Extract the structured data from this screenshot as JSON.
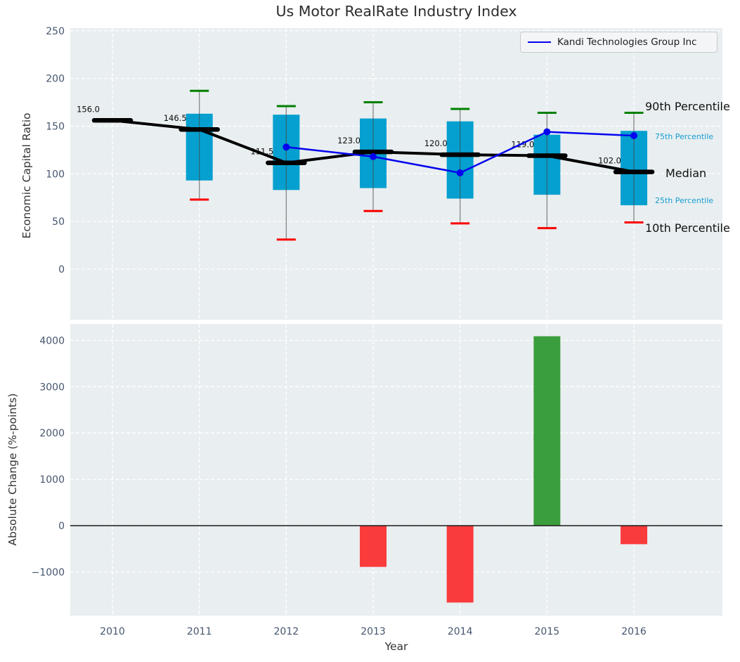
{
  "title": "Us Motor RealRate Industry Index",
  "labels": {
    "top_ylabel": "Economic Capital Ratio",
    "bottom_ylabel": "Absolute Change (%-points)",
    "xlabel": "Year"
  },
  "legend": {
    "label": "Kandi Technologies Group Inc"
  },
  "percentile_labels": {
    "p90": "90th Percentile",
    "p75": "75th Percentile",
    "median": "Median",
    "p25": "25th Percentile",
    "p10": "10th Percentile"
  },
  "axes": {
    "top_yticks": [
      {
        "value": 250,
        "label": "250"
      },
      {
        "value": 200,
        "label": "200"
      },
      {
        "value": 150,
        "label": "150"
      },
      {
        "value": 100,
        "label": "100"
      },
      {
        "value": 50,
        "label": "50"
      },
      {
        "value": 0,
        "label": "0"
      }
    ],
    "bottom_yticks": [
      {
        "value": 4000,
        "label": "4000"
      },
      {
        "value": 3000,
        "label": "3000"
      },
      {
        "value": 2000,
        "label": "2000"
      },
      {
        "value": 1000,
        "label": "1000"
      },
      {
        "value": 0,
        "label": "0"
      },
      {
        "value": -1000,
        "label": "−1000"
      }
    ],
    "xticks": [
      {
        "value": 2010,
        "label": "2010"
      },
      {
        "value": 2011,
        "label": "2011"
      },
      {
        "value": 2012,
        "label": "2012"
      },
      {
        "value": 2013,
        "label": "2013"
      },
      {
        "value": 2014,
        "label": "2014"
      },
      {
        "value": 2015,
        "label": "2015"
      },
      {
        "value": 2016,
        "label": "2016"
      }
    ]
  },
  "chart_data": [
    {
      "type": "box",
      "title": "Us Motor RealRate Industry Index",
      "xlabel": "Year",
      "ylabel": "Economic Capital Ratio",
      "ylim": [
        -57,
        250
      ],
      "yticks": [
        0,
        50,
        100,
        150,
        200,
        250
      ],
      "grid": true,
      "legend_position": "upper right",
      "categories": [
        2010,
        2011,
        2012,
        2013,
        2014,
        2015,
        2016
      ],
      "boxes": [
        {
          "year": 2010,
          "p10": null,
          "p25": null,
          "median": 156.0,
          "p75": null,
          "p90": null,
          "median_label": "156.0"
        },
        {
          "year": 2011,
          "p10": 73,
          "p25": 93,
          "median": 146.5,
          "p75": 163,
          "p90": 187,
          "median_label": "146.5"
        },
        {
          "year": 2012,
          "p10": 31,
          "p25": 83,
          "median": 111.5,
          "p75": 162,
          "p90": 171,
          "median_label": "111.5"
        },
        {
          "year": 2013,
          "p10": 61,
          "p25": 85,
          "median": 123.0,
          "p75": 158,
          "p90": 175,
          "median_label": "123.0"
        },
        {
          "year": 2014,
          "p10": 48,
          "p25": 74,
          "median": 120.0,
          "p75": 155,
          "p90": 168,
          "median_label": "120.0"
        },
        {
          "year": 2015,
          "p10": 43,
          "p25": 78,
          "median": 119.0,
          "p75": 141,
          "p90": 164,
          "median_label": "119.0"
        },
        {
          "year": 2016,
          "p10": 49,
          "p25": 67,
          "median": 102.0,
          "p75": 145,
          "p90": 164,
          "median_label": "102.0"
        }
      ],
      "series": [
        {
          "name": "Kandi Technologies Group Inc",
          "x": [
            2012,
            2013,
            2014,
            2015,
            2016
          ],
          "values": [
            128,
            118,
            101,
            144,
            140
          ]
        }
      ]
    },
    {
      "type": "bar",
      "xlabel": "Year",
      "ylabel": "Absolute Change (%-points)",
      "ylim": [
        -1940,
        4380
      ],
      "yticks": [
        -1000,
        0,
        1000,
        2000,
        3000,
        4000
      ],
      "grid": true,
      "categories": [
        2010,
        2011,
        2012,
        2013,
        2014,
        2015,
        2016
      ],
      "values": [
        0,
        0,
        0,
        -890,
        -1660,
        4090,
        -400
      ]
    }
  ],
  "colors": {
    "axes_background": "#e9eef0",
    "grid": "#ffffff",
    "box_fill": "#05a0cf",
    "whisker": "rgba(70,70,70,0.6)",
    "cap_top": "#008000",
    "cap_bottom": "#fb0000",
    "median": "#000000",
    "kandi_line": "#0404ee",
    "bar_positive": "#3a9e3c",
    "bar_negative": "#fa3b3b",
    "zero_line": "#1a1a1a",
    "tick_label": "#46566e",
    "annotation_cyan": "#149ed2",
    "median_label_text": "#0d0d0d"
  }
}
